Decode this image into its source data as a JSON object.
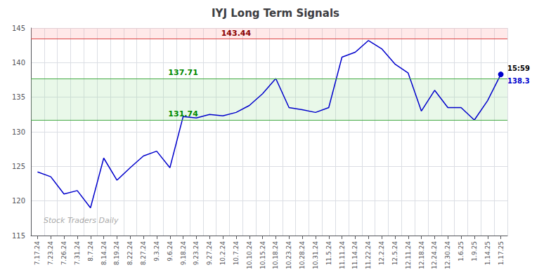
{
  "chart_data": {
    "type": "line",
    "title": "IYJ Long Term Signals",
    "categories": [
      "7.17.24",
      "7.23.24",
      "7.26.24",
      "7.31.24",
      "8.7.24",
      "8.14.24",
      "8.19.24",
      "8.22.24",
      "8.27.24",
      "9.3.24",
      "9.6.24",
      "9.18.24",
      "9.23.24",
      "9.27.24",
      "10.2.24",
      "10.7.24",
      "10.10.24",
      "10.15.24",
      "10.18.24",
      "10.23.24",
      "10.28.24",
      "10.31.24",
      "11.5.24",
      "11.11.24",
      "11.14.24",
      "11.22.24",
      "12.2.24",
      "12.5.24",
      "12.11.24",
      "12.18.24",
      "12.24.24",
      "12.30.24",
      "1.6.25",
      "1.9.25",
      "1.14.25",
      "1.17.25"
    ],
    "values": [
      124.2,
      123.5,
      121.0,
      121.5,
      119.0,
      126.2,
      123.0,
      124.8,
      126.5,
      127.2,
      124.8,
      132.2,
      132.0,
      132.5,
      132.3,
      132.8,
      133.8,
      135.5,
      137.7,
      133.5,
      133.2,
      132.8,
      133.5,
      140.8,
      141.5,
      143.2,
      142.0,
      139.8,
      138.5,
      133.0,
      136.0,
      133.5,
      133.5,
      131.7,
      134.5,
      138.3
    ],
    "color": "#0000cc",
    "ylim": [
      115,
      145
    ],
    "yticks": [
      115,
      120,
      125,
      130,
      135,
      140,
      145
    ],
    "grid": true,
    "hlines": [
      {
        "y": 143.44,
        "label": "143.44",
        "color": "#dd4444",
        "label_color": "darkred",
        "label_x": "10.7.24"
      },
      {
        "y": 137.71,
        "label": "137.71",
        "color": "#44aa44",
        "label_color": "#008800",
        "label_x": "9.18.24"
      },
      {
        "y": 131.74,
        "label": "131.74",
        "color": "#44aa44",
        "label_color": "#008800",
        "label_x": "9.18.24"
      }
    ],
    "bands": [
      {
        "from": 143.44,
        "to": 145,
        "color": "#ff9999"
      },
      {
        "from": 131.74,
        "to": 137.71,
        "color": "#99dd99"
      }
    ],
    "last_point": {
      "color": "#0000cc",
      "time_label": "15:59",
      "price_label": "138.3"
    },
    "watermark": "Stock Traders Daily"
  }
}
